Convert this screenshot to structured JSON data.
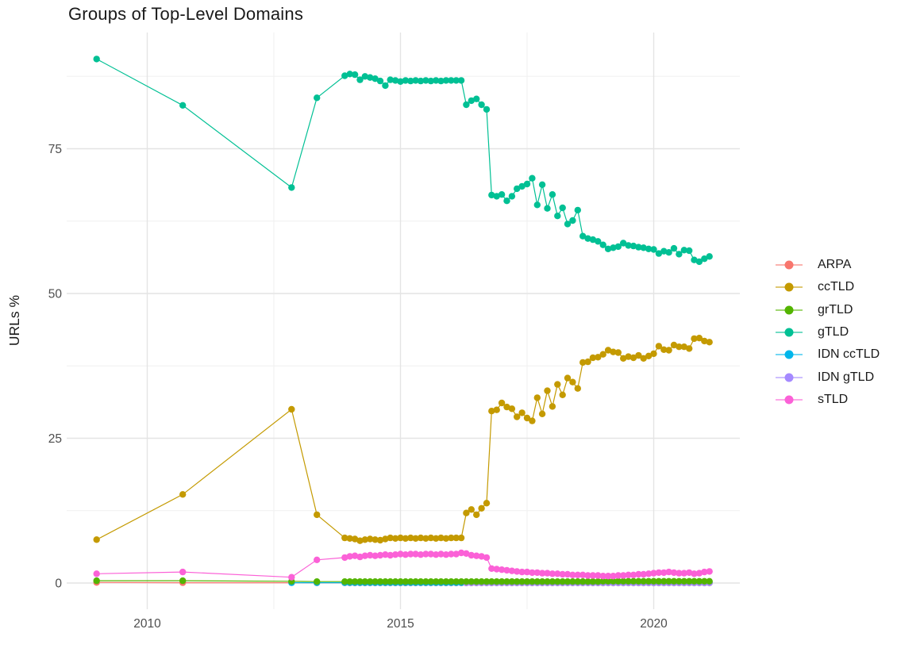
{
  "title": "Groups of Top-Level Domains",
  "chart_data": {
    "type": "line",
    "title": "Groups of Top-Level Domains",
    "xlabel": "",
    "ylabel": "URLs %",
    "grid": true,
    "legend_position": "right",
    "xlim": [
      2008.4,
      2021.7
    ],
    "ylim": [
      -4.5,
      95.3
    ],
    "x_ticks": [
      2010,
      2015,
      2020
    ],
    "x_minor": [
      2012.5,
      2017.5
    ],
    "y_ticks": [
      0,
      25,
      50,
      75
    ],
    "y_minor": [
      12.5,
      37.5,
      62.5,
      87.5
    ],
    "x": [
      2009.0,
      2010.7,
      2012.85,
      2013.35,
      2013.9,
      2014.0,
      2014.1,
      2014.2,
      2014.3,
      2014.4,
      2014.5,
      2014.6,
      2014.7,
      2014.8,
      2014.9,
      2015.0,
      2015.1,
      2015.2,
      2015.3,
      2015.4,
      2015.5,
      2015.6,
      2015.7,
      2015.8,
      2015.9,
      2016.0,
      2016.1,
      2016.2,
      2016.3,
      2016.4,
      2016.5,
      2016.6,
      2016.7,
      2016.8,
      2016.9,
      2017.0,
      2017.1,
      2017.2,
      2017.3,
      2017.4,
      2017.5,
      2017.6,
      2017.7,
      2017.8,
      2017.9,
      2018.0,
      2018.1,
      2018.2,
      2018.3,
      2018.4,
      2018.5,
      2018.6,
      2018.7,
      2018.8,
      2018.9,
      2019.0,
      2019.1,
      2019.2,
      2019.3,
      2019.4,
      2019.5,
      2019.6,
      2019.7,
      2019.8,
      2019.9,
      2020.0,
      2020.1,
      2020.2,
      2020.3,
      2020.4,
      2020.5,
      2020.6,
      2020.7,
      2020.8,
      2020.9,
      2021.0,
      2021.1
    ],
    "series": [
      {
        "name": "ARPA",
        "color": "#F8766D",
        "values": [
          0.1,
          0.05,
          0.05,
          0.03,
          0.03,
          0.02,
          0.02,
          0.02,
          0.02,
          0.02,
          0.02,
          0.02,
          0.02,
          0.02,
          0.02,
          0.02,
          0.02,
          0.02,
          0.02,
          0.02,
          0.02,
          0.02,
          0.02,
          0.02,
          0.02,
          0.02,
          0.02,
          0.02,
          0.02,
          0.02,
          0.02,
          0.02,
          0.02,
          0.02,
          0.02,
          0.02,
          0.02,
          0.02,
          0.02,
          0.02,
          0.02,
          0.02,
          0.02,
          0.02,
          0.02,
          0.02,
          0.02,
          0.02,
          0.02,
          0.02,
          0.02,
          0.02,
          0.02,
          0.02,
          0.02,
          0.02,
          0.02,
          0.02,
          0.02,
          0.02,
          0.02,
          0.02,
          0.02,
          0.02,
          0.02,
          0.02,
          0.02,
          0.02,
          0.02,
          0.02,
          0.02,
          0.02,
          0.02,
          0.02,
          0.02,
          0.02,
          0.02
        ]
      },
      {
        "name": "ccTLD",
        "color": "#C49A00",
        "values": [
          7.5,
          15.3,
          30.0,
          11.8,
          7.8,
          7.7,
          7.6,
          7.3,
          7.5,
          7.6,
          7.5,
          7.4,
          7.6,
          7.8,
          7.7,
          7.8,
          7.7,
          7.8,
          7.7,
          7.8,
          7.7,
          7.8,
          7.7,
          7.8,
          7.7,
          7.8,
          7.8,
          7.8,
          12.1,
          12.7,
          11.8,
          12.9,
          13.8,
          29.7,
          29.9,
          31.1,
          30.4,
          30.1,
          28.7,
          29.4,
          28.5,
          28.0,
          32.0,
          29.2,
          33.2,
          30.5,
          34.3,
          32.5,
          35.4,
          34.7,
          33.6,
          38.1,
          38.2,
          38.9,
          39.0,
          39.5,
          40.2,
          39.9,
          39.8,
          38.8,
          39.1,
          38.9,
          39.3,
          38.8,
          39.2,
          39.6,
          40.9,
          40.3,
          40.2,
          41.1,
          40.8,
          40.8,
          40.5,
          42.2,
          42.3,
          41.8,
          41.6
        ]
      },
      {
        "name": "grTLD",
        "color": "#53B400",
        "values": [
          0.4,
          0.4,
          0.3,
          0.25,
          0.25,
          0.25,
          0.25,
          0.25,
          0.25,
          0.25,
          0.25,
          0.25,
          0.25,
          0.25,
          0.25,
          0.25,
          0.25,
          0.25,
          0.25,
          0.25,
          0.25,
          0.25,
          0.25,
          0.25,
          0.25,
          0.25,
          0.25,
          0.25,
          0.25,
          0.25,
          0.25,
          0.25,
          0.25,
          0.25,
          0.25,
          0.25,
          0.25,
          0.25,
          0.25,
          0.25,
          0.25,
          0.25,
          0.25,
          0.25,
          0.25,
          0.25,
          0.25,
          0.25,
          0.25,
          0.25,
          0.25,
          0.25,
          0.25,
          0.25,
          0.25,
          0.3,
          0.3,
          0.3,
          0.3,
          0.3,
          0.3,
          0.3,
          0.3,
          0.3,
          0.3,
          0.3,
          0.3,
          0.3,
          0.3,
          0.3,
          0.3,
          0.3,
          0.3,
          0.3,
          0.3,
          0.3,
          0.3
        ]
      },
      {
        "name": "gTLD",
        "color": "#00C094",
        "values": [
          90.5,
          82.5,
          68.3,
          83.8,
          87.6,
          87.9,
          87.8,
          86.9,
          87.5,
          87.3,
          87.1,
          86.7,
          85.9,
          86.9,
          86.8,
          86.6,
          86.8,
          86.7,
          86.8,
          86.7,
          86.8,
          86.7,
          86.8,
          86.7,
          86.8,
          86.8,
          86.8,
          86.8,
          82.6,
          83.3,
          83.6,
          82.6,
          81.8,
          67.0,
          66.8,
          67.1,
          66.0,
          66.8,
          68.1,
          68.5,
          68.9,
          69.9,
          65.3,
          68.8,
          64.7,
          67.1,
          63.4,
          64.8,
          62.0,
          62.6,
          64.4,
          59.9,
          59.5,
          59.3,
          59.0,
          58.4,
          57.7,
          57.9,
          58.1,
          58.7,
          58.3,
          58.2,
          58.0,
          57.9,
          57.7,
          57.6,
          56.9,
          57.3,
          57.1,
          57.8,
          56.8,
          57.5,
          57.4,
          55.8,
          55.5,
          56.0,
          56.4
        ]
      },
      {
        "name": "IDN ccTLD",
        "color": "#00B6EB",
        "values": [
          null,
          null,
          0.05,
          0.05,
          0.05,
          0.05,
          0.05,
          0.05,
          0.05,
          0.05,
          0.05,
          0.05,
          0.05,
          0.05,
          0.05,
          0.05,
          0.05,
          0.05,
          0.05,
          0.05,
          0.05,
          0.05,
          0.05,
          0.05,
          0.05,
          0.05,
          0.05,
          0.05,
          0.05,
          0.05,
          0.05,
          0.05,
          0.05,
          0.05,
          0.05,
          0.05,
          0.05,
          0.05,
          0.05,
          0.05,
          0.05,
          0.05,
          0.05,
          0.05,
          0.05,
          0.05,
          0.05,
          0.05,
          0.05,
          0.05,
          0.05,
          0.05,
          0.05,
          0.05,
          0.05,
          0.05,
          0.05,
          0.05,
          0.05,
          0.05,
          0.05,
          0.05,
          0.05,
          0.05,
          0.05,
          0.05,
          0.05,
          0.05,
          0.05,
          0.05,
          0.05,
          0.05,
          0.05,
          0.05,
          0.05,
          0.05,
          0.05
        ]
      },
      {
        "name": "IDN gTLD",
        "color": "#A58AFF",
        "values": [
          null,
          null,
          null,
          null,
          null,
          null,
          null,
          null,
          null,
          null,
          null,
          null,
          null,
          null,
          null,
          null,
          null,
          null,
          null,
          null,
          null,
          null,
          null,
          null,
          null,
          null,
          null,
          null,
          0.05,
          0.05,
          0.05,
          0.05,
          0.05,
          0.05,
          0.05,
          0.05,
          0.05,
          0.05,
          0.05,
          0.05,
          0.05,
          0.05,
          0.05,
          0.05,
          0.05,
          0.05,
          0.05,
          0.05,
          0.05,
          0.05,
          0.05,
          0.05,
          0.05,
          0.05,
          0.05,
          0.05,
          0.05,
          0.05,
          0.05,
          0.05,
          0.05,
          0.05,
          0.05,
          0.05,
          0.05,
          0.05,
          0.05,
          0.05,
          0.05,
          0.05,
          0.05,
          0.05,
          0.05,
          0.05,
          0.05,
          0.05,
          0.05
        ]
      },
      {
        "name": "sTLD",
        "color": "#FB61D7",
        "values": [
          1.6,
          1.9,
          1.0,
          4.0,
          4.4,
          4.6,
          4.7,
          4.5,
          4.7,
          4.8,
          4.7,
          4.8,
          4.9,
          4.8,
          4.9,
          5.0,
          4.9,
          5.0,
          5.0,
          4.9,
          5.0,
          5.0,
          4.9,
          5.0,
          4.9,
          5.0,
          5.0,
          5.2,
          5.1,
          4.8,
          4.7,
          4.6,
          4.4,
          2.5,
          2.4,
          2.3,
          2.2,
          2.1,
          2.0,
          1.9,
          1.9,
          1.8,
          1.8,
          1.7,
          1.7,
          1.6,
          1.6,
          1.5,
          1.5,
          1.4,
          1.4,
          1.4,
          1.3,
          1.3,
          1.3,
          1.2,
          1.2,
          1.2,
          1.3,
          1.3,
          1.4,
          1.4,
          1.5,
          1.5,
          1.6,
          1.7,
          1.8,
          1.8,
          1.9,
          1.8,
          1.7,
          1.7,
          1.8,
          1.6,
          1.7,
          1.9,
          2.0
        ]
      }
    ]
  }
}
